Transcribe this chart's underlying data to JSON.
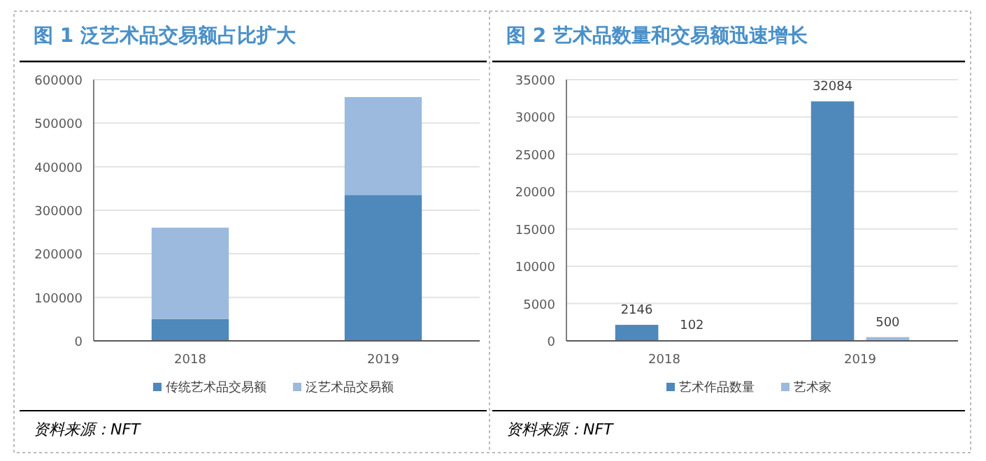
{
  "chart_data": [
    {
      "type": "bar",
      "title": "图 1 泛艺术品交易额占比扩大",
      "categories": [
        "2018",
        "2019"
      ],
      "stacked": true,
      "series": [
        {
          "name": "传统艺术品交易额",
          "color": "#4f88bb",
          "values": [
            50000,
            335000
          ]
        },
        {
          "name": "泛艺术品交易额",
          "color": "#9bbade",
          "values": [
            210000,
            225000
          ]
        }
      ],
      "ylim": [
        0,
        600000
      ],
      "yticks": [
        0,
        100000,
        200000,
        300000,
        400000,
        500000,
        600000
      ],
      "grid": "y",
      "legend": "bottom",
      "annotations": [
        "资料来源：NFT"
      ]
    },
    {
      "type": "bar",
      "title": "图 2 艺术品数量和交易额迅速增长",
      "categories": [
        "2018",
        "2019"
      ],
      "series": [
        {
          "name": "艺术作品数量",
          "color": "#4f88bb",
          "values": [
            2146,
            32084
          ]
        },
        {
          "name": "艺术家",
          "color": "#9bbade",
          "values": [
            102,
            500
          ]
        }
      ],
      "ylim": [
        0,
        35000
      ],
      "yticks": [
        0,
        5000,
        10000,
        15000,
        20000,
        25000,
        30000,
        35000
      ],
      "grid": "y",
      "legend": "bottom",
      "data_labels": true,
      "annotations": [
        "资料来源：NFT"
      ]
    }
  ]
}
